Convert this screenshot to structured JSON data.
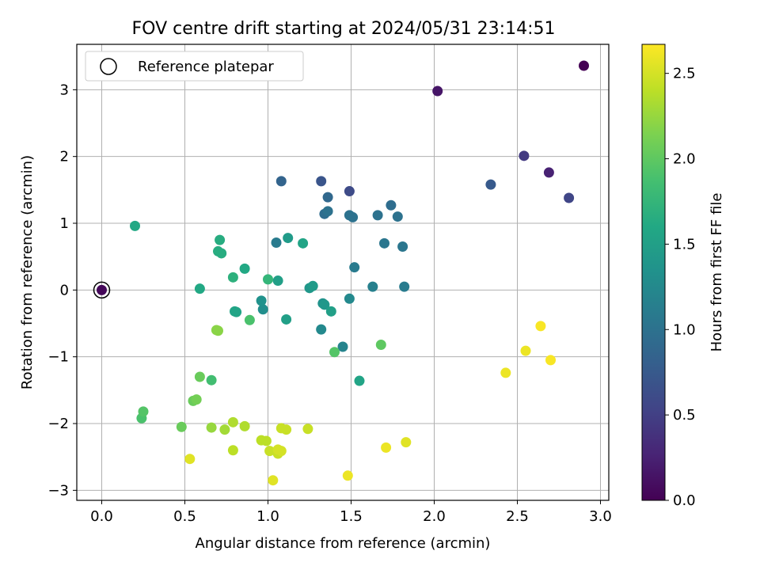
{
  "chart_data": {
    "type": "scatter",
    "title": "FOV centre drift starting at 2024/05/31 23:14:51",
    "xlabel": "Angular distance from reference (arcmin)",
    "ylabel": "Rotation from reference (arcmin)",
    "xlim": [
      -0.15,
      3.05
    ],
    "ylim": [
      -3.15,
      3.68
    ],
    "x_ticks": [
      "0.0",
      "0.5",
      "1.0",
      "1.5",
      "2.0",
      "2.5",
      "3.0"
    ],
    "y_ticks": [
      "−3",
      "−2",
      "−1",
      "0",
      "1",
      "2",
      "3"
    ],
    "grid": true,
    "legend": {
      "placement": "top-left",
      "entries": [
        "Reference platepar"
      ]
    },
    "reference_point": {
      "x": 0.0,
      "y": 0.0
    },
    "colorbar": {
      "label": "Hours from first FF file",
      "colormap": "viridis",
      "range": [
        0.0,
        2.67
      ],
      "ticks": [
        "0.0",
        "0.5",
        "1.0",
        "1.5",
        "2.0",
        "2.5"
      ]
    },
    "points": [
      {
        "x": 2.9,
        "y": 3.36,
        "c": 0.0
      },
      {
        "x": 0.0,
        "y": 0.0,
        "c": 0.05
      },
      {
        "x": 2.02,
        "y": 2.98,
        "c": 0.15
      },
      {
        "x": 2.69,
        "y": 1.76,
        "c": 0.25
      },
      {
        "x": 2.54,
        "y": 2.01,
        "c": 0.45
      },
      {
        "x": 2.81,
        "y": 1.38,
        "c": 0.55
      },
      {
        "x": 1.49,
        "y": 1.48,
        "c": 0.6
      },
      {
        "x": 1.32,
        "y": 1.63,
        "c": 0.7
      },
      {
        "x": 2.34,
        "y": 1.58,
        "c": 0.75
      },
      {
        "x": 1.08,
        "y": 1.63,
        "c": 0.85
      },
      {
        "x": 1.36,
        "y": 1.39,
        "c": 0.9
      },
      {
        "x": 1.74,
        "y": 1.27,
        "c": 0.95
      },
      {
        "x": 1.34,
        "y": 1.14,
        "c": 0.95
      },
      {
        "x": 1.36,
        "y": 1.18,
        "c": 1.0
      },
      {
        "x": 1.49,
        "y": 1.12,
        "c": 1.0
      },
      {
        "x": 1.51,
        "y": 1.09,
        "c": 1.0
      },
      {
        "x": 1.66,
        "y": 1.12,
        "c": 1.0
      },
      {
        "x": 1.78,
        "y": 1.1,
        "c": 1.0
      },
      {
        "x": 1.7,
        "y": 0.7,
        "c": 1.05
      },
      {
        "x": 1.81,
        "y": 0.65,
        "c": 1.05
      },
      {
        "x": 1.05,
        "y": 0.71,
        "c": 1.1
      },
      {
        "x": 1.52,
        "y": 0.34,
        "c": 1.1
      },
      {
        "x": 1.82,
        "y": 0.05,
        "c": 1.1
      },
      {
        "x": 1.63,
        "y": 0.05,
        "c": 1.15
      },
      {
        "x": 1.45,
        "y": -0.85,
        "c": 1.2
      },
      {
        "x": 1.49,
        "y": -0.13,
        "c": 1.25
      },
      {
        "x": 1.32,
        "y": -0.59,
        "c": 1.25
      },
      {
        "x": 0.97,
        "y": -0.29,
        "c": 1.3
      },
      {
        "x": 0.96,
        "y": -0.16,
        "c": 1.35
      },
      {
        "x": 1.33,
        "y": -0.2,
        "c": 1.35
      },
      {
        "x": 1.34,
        "y": -0.22,
        "c": 1.4
      },
      {
        "x": 1.25,
        "y": 0.03,
        "c": 1.4
      },
      {
        "x": 1.27,
        "y": 0.06,
        "c": 1.45
      },
      {
        "x": 1.12,
        "y": 0.78,
        "c": 1.45
      },
      {
        "x": 1.06,
        "y": 0.14,
        "c": 1.5
      },
      {
        "x": 1.38,
        "y": -0.32,
        "c": 1.5
      },
      {
        "x": 1.11,
        "y": -0.44,
        "c": 1.5
      },
      {
        "x": 1.55,
        "y": -1.36,
        "c": 1.55
      },
      {
        "x": 1.21,
        "y": 0.7,
        "c": 1.55
      },
      {
        "x": 0.8,
        "y": -0.32,
        "c": 1.55
      },
      {
        "x": 0.81,
        "y": -0.33,
        "c": 1.55
      },
      {
        "x": 0.86,
        "y": 0.32,
        "c": 1.6
      },
      {
        "x": 0.2,
        "y": 0.96,
        "c": 1.6
      },
      {
        "x": 0.59,
        "y": 0.02,
        "c": 1.6
      },
      {
        "x": 0.71,
        "y": 0.75,
        "c": 1.65
      },
      {
        "x": 0.7,
        "y": 0.58,
        "c": 1.65
      },
      {
        "x": 0.72,
        "y": 0.55,
        "c": 1.65
      },
      {
        "x": 0.79,
        "y": 0.19,
        "c": 1.7
      },
      {
        "x": 1.0,
        "y": 0.16,
        "c": 1.75
      },
      {
        "x": 0.66,
        "y": -1.35,
        "c": 1.85
      },
      {
        "x": 0.89,
        "y": -0.45,
        "c": 1.9
      },
      {
        "x": 1.4,
        "y": -0.93,
        "c": 1.95
      },
      {
        "x": 1.68,
        "y": -0.82,
        "c": 2.0
      },
      {
        "x": 0.24,
        "y": -1.92,
        "c": 1.9
      },
      {
        "x": 0.25,
        "y": -1.82,
        "c": 1.95
      },
      {
        "x": 0.48,
        "y": -2.05,
        "c": 2.05
      },
      {
        "x": 0.59,
        "y": -1.3,
        "c": 2.05
      },
      {
        "x": 0.55,
        "y": -1.66,
        "c": 2.05
      },
      {
        "x": 0.57,
        "y": -1.64,
        "c": 2.1
      },
      {
        "x": 0.7,
        "y": -0.61,
        "c": 2.2
      },
      {
        "x": 0.69,
        "y": -0.6,
        "c": 2.2
      },
      {
        "x": 0.66,
        "y": -2.06,
        "c": 2.25
      },
      {
        "x": 0.74,
        "y": -2.09,
        "c": 2.3
      },
      {
        "x": 0.79,
        "y": -1.98,
        "c": 2.35
      },
      {
        "x": 0.86,
        "y": -2.04,
        "c": 2.35
      },
      {
        "x": 0.79,
        "y": -2.4,
        "c": 2.4
      },
      {
        "x": 0.96,
        "y": -2.25,
        "c": 2.4
      },
      {
        "x": 0.99,
        "y": -2.26,
        "c": 2.4
      },
      {
        "x": 1.01,
        "y": -2.41,
        "c": 2.45
      },
      {
        "x": 1.06,
        "y": -2.45,
        "c": 2.45
      },
      {
        "x": 1.06,
        "y": -2.39,
        "c": 2.5
      },
      {
        "x": 1.08,
        "y": -2.41,
        "c": 2.5
      },
      {
        "x": 1.08,
        "y": -2.07,
        "c": 2.45
      },
      {
        "x": 1.11,
        "y": -2.09,
        "c": 2.45
      },
      {
        "x": 1.24,
        "y": -2.08,
        "c": 2.45
      },
      {
        "x": 1.03,
        "y": -2.85,
        "c": 2.55
      },
      {
        "x": 0.53,
        "y": -2.53,
        "c": 2.55
      },
      {
        "x": 1.48,
        "y": -2.78,
        "c": 2.6
      },
      {
        "x": 1.71,
        "y": -2.36,
        "c": 2.6
      },
      {
        "x": 1.83,
        "y": -2.28,
        "c": 2.55
      },
      {
        "x": 2.43,
        "y": -1.24,
        "c": 2.6
      },
      {
        "x": 2.55,
        "y": -0.91,
        "c": 2.6
      },
      {
        "x": 2.64,
        "y": -0.54,
        "c": 2.65
      },
      {
        "x": 2.7,
        "y": -1.05,
        "c": 2.65
      }
    ]
  }
}
